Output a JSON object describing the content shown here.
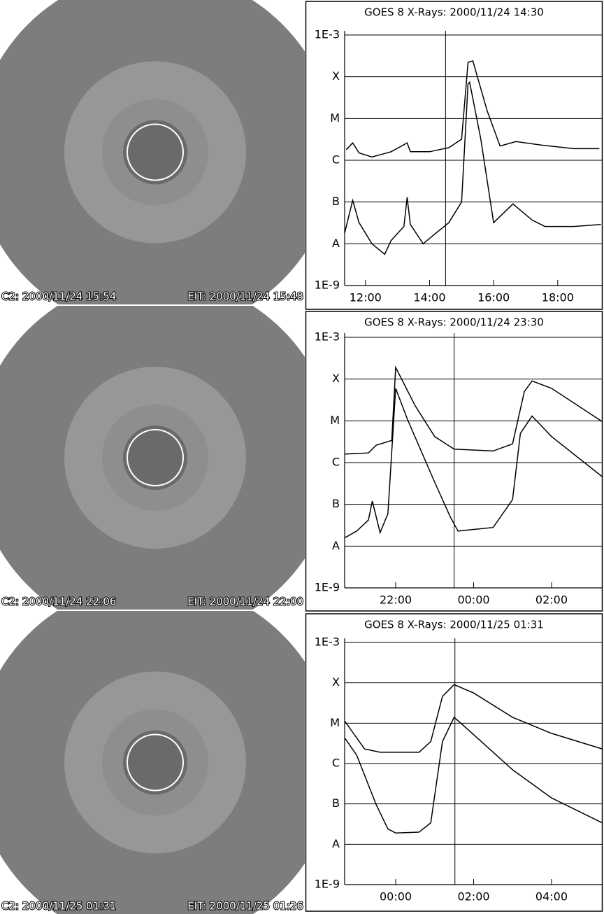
{
  "images": [
    {
      "c2_caption": "C2: 2000/11/24 15:54",
      "eit_caption": "EIT: 2000/11/24 15:48"
    },
    {
      "c2_caption": "C2: 2000/11/24 22:06",
      "eit_caption": "EIT: 2000/11/24 22:00"
    },
    {
      "c2_caption": "C2: 2000/11/25 01:31",
      "eit_caption": "EIT: 2000/11/25 01:26"
    }
  ],
  "chart_data": [
    {
      "type": "line",
      "title": "GOES 8 X-Rays: 2000/11/24 14:30",
      "log_scale": true,
      "marker_x": 14.5,
      "xlim": [
        11.35,
        19.4
      ],
      "xticks": [
        {
          "value": 12,
          "label": "12:00"
        },
        {
          "value": 14,
          "label": "14:00"
        },
        {
          "value": 16,
          "label": "16:00"
        },
        {
          "value": 18,
          "label": "18:00"
        }
      ],
      "ylim": [
        1e-09,
        0.001
      ],
      "yticks": [
        {
          "value": 1e-09,
          "label": "1E-9"
        },
        {
          "value": 1e-08,
          "label": "A"
        },
        {
          "value": 1e-07,
          "label": "B"
        },
        {
          "value": 1e-06,
          "label": "C"
        },
        {
          "value": 1e-05,
          "label": "M"
        },
        {
          "value": 0.0001,
          "label": "X"
        },
        {
          "value": 0.001,
          "label": "1E-3"
        }
      ],
      "grid": true,
      "series": [
        {
          "color": "#000000",
          "x": [
            11.4,
            11.6,
            11.8,
            12.2,
            12.8,
            13.3,
            13.4,
            14.0,
            14.6,
            15.0,
            15.2,
            15.35,
            15.8,
            16.2,
            16.7,
            17.5,
            18.5,
            19.3
          ],
          "values": [
            1.8e-06,
            2.6e-06,
            1.5e-06,
            1.2e-06,
            1.6e-06,
            2.6e-06,
            1.6e-06,
            1.6e-06,
            2e-06,
            3.2e-06,
            0.00022,
            0.00024,
            1.5e-05,
            2.2e-06,
            2.8e-06,
            2.3e-06,
            1.9e-06,
            1.9e-06
          ]
        },
        {
          "color": "#000000",
          "x": [
            11.35,
            11.6,
            11.8,
            12.2,
            12.6,
            12.8,
            13.2,
            13.3,
            13.4,
            13.8,
            14.2,
            14.6,
            15.0,
            15.2,
            15.25,
            15.6,
            16.0,
            16.6,
            17.2,
            17.6,
            18.5,
            19.35
          ],
          "values": [
            1.8e-08,
            1.1e-07,
            3.2e-08,
            1e-08,
            5.6e-09,
            1.2e-08,
            2.6e-08,
            1.3e-07,
            2.9e-08,
            1e-08,
            1.8e-08,
            3.2e-08,
            1e-07,
            6.8e-05,
            7.4e-05,
            3.2e-06,
            3.2e-08,
            9e-08,
            3.7e-08,
            2.6e-08,
            2.6e-08,
            2.9e-08
          ]
        }
      ]
    },
    {
      "type": "line",
      "title": "GOES 8 X-Rays: 2000/11/24 23:30",
      "log_scale": true,
      "marker_x": 23.5,
      "xlim": [
        20.69,
        27.31
      ],
      "xticks": [
        {
          "value": 22,
          "label": "22:00"
        },
        {
          "value": 24,
          "label": "00:00"
        },
        {
          "value": 26,
          "label": "02:00"
        }
      ],
      "ylim": [
        1e-09,
        0.001
      ],
      "yticks": [
        {
          "value": 1e-09,
          "label": "1E-9"
        },
        {
          "value": 1e-08,
          "label": "A"
        },
        {
          "value": 1e-07,
          "label": "B"
        },
        {
          "value": 1e-06,
          "label": "C"
        },
        {
          "value": 1e-05,
          "label": "M"
        },
        {
          "value": 0.0001,
          "label": "X"
        },
        {
          "value": 0.001,
          "label": "1E-3"
        }
      ],
      "grid": true,
      "series": [
        {
          "color": "#000000",
          "x": [
            20.7,
            21.3,
            21.5,
            21.9,
            22.0,
            22.5,
            23.0,
            23.5,
            24.5,
            25.0,
            25.3,
            25.5,
            26.0,
            27.3
          ],
          "values": [
            1.6e-06,
            1.7e-06,
            2.6e-06,
            3.4e-06,
            0.00019,
            2.3e-05,
            4.2e-06,
            2.1e-06,
            1.9e-06,
            2.8e-06,
            5e-05,
            9e-05,
            6e-05,
            9.6e-06
          ]
        },
        {
          "color": "#000000",
          "x": [
            20.7,
            21.0,
            21.3,
            21.4,
            21.6,
            21.8,
            22.0,
            22.3,
            23.0,
            23.4,
            23.6,
            24.5,
            25.0,
            25.2,
            25.5,
            26.0,
            27.3
          ],
          "values": [
            1.6e-08,
            2.3e-08,
            4.2e-08,
            1.2e-07,
            2.1e-08,
            6e-08,
            6e-05,
            1.1e-05,
            3.4e-07,
            5e-08,
            2.3e-08,
            2.8e-08,
            1.3e-07,
            5e-06,
            1.3e-05,
            4.2e-06,
            4.6e-07
          ]
        }
      ]
    },
    {
      "type": "line",
      "title": "GOES 8 X-Rays: 2000/11/25 01:31",
      "log_scale": true,
      "marker_x": 25.52,
      "xlim": [
        22.69,
        29.31
      ],
      "xticks": [
        {
          "value": 24,
          "label": "00:00"
        },
        {
          "value": 26,
          "label": "02:00"
        },
        {
          "value": 28,
          "label": "04:00"
        }
      ],
      "ylim": [
        1e-09,
        0.001
      ],
      "yticks": [
        {
          "value": 1e-09,
          "label": "1E-9"
        },
        {
          "value": 1e-08,
          "label": "A"
        },
        {
          "value": 1e-07,
          "label": "B"
        },
        {
          "value": 1e-06,
          "label": "C"
        },
        {
          "value": 1e-05,
          "label": "M"
        },
        {
          "value": 0.0001,
          "label": "X"
        },
        {
          "value": 0.001,
          "label": "1E-3"
        }
      ],
      "grid": true,
      "series": [
        {
          "color": "#000000",
          "x": [
            22.7,
            23.2,
            23.6,
            24.6,
            24.9,
            25.2,
            25.5,
            26.0,
            27.0,
            28.0,
            29.3
          ],
          "values": [
            1.1e-05,
            2.3e-06,
            1.9e-06,
            1.9e-06,
            3.5e-06,
            4.6e-05,
            9e-05,
            5.6e-05,
            1.4e-05,
            5.6e-06,
            2.3e-06
          ]
        },
        {
          "color": "#000000",
          "x": [
            22.7,
            23.0,
            23.5,
            23.8,
            24.0,
            24.6,
            24.9,
            25.2,
            25.5,
            26.0,
            27.0,
            28.0,
            29.3
          ],
          "values": [
            4.2e-06,
            1.6e-06,
            9.6e-08,
            2.4e-08,
            1.9e-08,
            2e-08,
            3.4e-08,
            3.5e-06,
            1.4e-05,
            5.2e-06,
            7e-07,
            1.4e-07,
            3.4e-08
          ]
        }
      ]
    }
  ]
}
